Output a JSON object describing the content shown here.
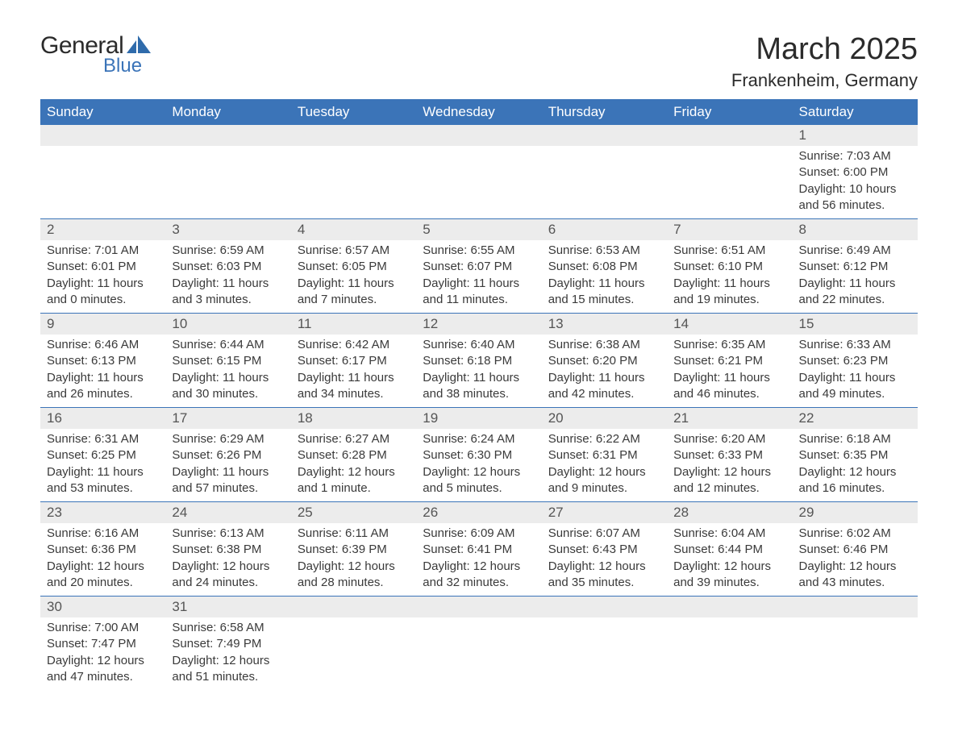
{
  "logo": {
    "top": "General",
    "bottom": "Blue",
    "sail_color": "#2f6bab",
    "text_color": "#2b2b2b"
  },
  "title": "March 2025",
  "location": "Frankenheim, Germany",
  "colors": {
    "header_bg": "#3b74b8",
    "header_text": "#ffffff",
    "daynum_bg": "#ececec",
    "row_divider": "#3b74b8",
    "body_text": "#3a3a3a"
  },
  "typography": {
    "title_fontsize": 38,
    "location_fontsize": 22,
    "header_fontsize": 17,
    "daynum_fontsize": 17,
    "cell_fontsize": 15
  },
  "layout": {
    "columns": 7,
    "rows": 6,
    "start_day_index": 6
  },
  "weekdays": [
    "Sunday",
    "Monday",
    "Tuesday",
    "Wednesday",
    "Thursday",
    "Friday",
    "Saturday"
  ],
  "days": [
    {
      "n": 1,
      "sunrise": "7:03 AM",
      "sunset": "6:00 PM",
      "daylight": "10 hours and 56 minutes."
    },
    {
      "n": 2,
      "sunrise": "7:01 AM",
      "sunset": "6:01 PM",
      "daylight": "11 hours and 0 minutes."
    },
    {
      "n": 3,
      "sunrise": "6:59 AM",
      "sunset": "6:03 PM",
      "daylight": "11 hours and 3 minutes."
    },
    {
      "n": 4,
      "sunrise": "6:57 AM",
      "sunset": "6:05 PM",
      "daylight": "11 hours and 7 minutes."
    },
    {
      "n": 5,
      "sunrise": "6:55 AM",
      "sunset": "6:07 PM",
      "daylight": "11 hours and 11 minutes."
    },
    {
      "n": 6,
      "sunrise": "6:53 AM",
      "sunset": "6:08 PM",
      "daylight": "11 hours and 15 minutes."
    },
    {
      "n": 7,
      "sunrise": "6:51 AM",
      "sunset": "6:10 PM",
      "daylight": "11 hours and 19 minutes."
    },
    {
      "n": 8,
      "sunrise": "6:49 AM",
      "sunset": "6:12 PM",
      "daylight": "11 hours and 22 minutes."
    },
    {
      "n": 9,
      "sunrise": "6:46 AM",
      "sunset": "6:13 PM",
      "daylight": "11 hours and 26 minutes."
    },
    {
      "n": 10,
      "sunrise": "6:44 AM",
      "sunset": "6:15 PM",
      "daylight": "11 hours and 30 minutes."
    },
    {
      "n": 11,
      "sunrise": "6:42 AM",
      "sunset": "6:17 PM",
      "daylight": "11 hours and 34 minutes."
    },
    {
      "n": 12,
      "sunrise": "6:40 AM",
      "sunset": "6:18 PM",
      "daylight": "11 hours and 38 minutes."
    },
    {
      "n": 13,
      "sunrise": "6:38 AM",
      "sunset": "6:20 PM",
      "daylight": "11 hours and 42 minutes."
    },
    {
      "n": 14,
      "sunrise": "6:35 AM",
      "sunset": "6:21 PM",
      "daylight": "11 hours and 46 minutes."
    },
    {
      "n": 15,
      "sunrise": "6:33 AM",
      "sunset": "6:23 PM",
      "daylight": "11 hours and 49 minutes."
    },
    {
      "n": 16,
      "sunrise": "6:31 AM",
      "sunset": "6:25 PM",
      "daylight": "11 hours and 53 minutes."
    },
    {
      "n": 17,
      "sunrise": "6:29 AM",
      "sunset": "6:26 PM",
      "daylight": "11 hours and 57 minutes."
    },
    {
      "n": 18,
      "sunrise": "6:27 AM",
      "sunset": "6:28 PM",
      "daylight": "12 hours and 1 minute."
    },
    {
      "n": 19,
      "sunrise": "6:24 AM",
      "sunset": "6:30 PM",
      "daylight": "12 hours and 5 minutes."
    },
    {
      "n": 20,
      "sunrise": "6:22 AM",
      "sunset": "6:31 PM",
      "daylight": "12 hours and 9 minutes."
    },
    {
      "n": 21,
      "sunrise": "6:20 AM",
      "sunset": "6:33 PM",
      "daylight": "12 hours and 12 minutes."
    },
    {
      "n": 22,
      "sunrise": "6:18 AM",
      "sunset": "6:35 PM",
      "daylight": "12 hours and 16 minutes."
    },
    {
      "n": 23,
      "sunrise": "6:16 AM",
      "sunset": "6:36 PM",
      "daylight": "12 hours and 20 minutes."
    },
    {
      "n": 24,
      "sunrise": "6:13 AM",
      "sunset": "6:38 PM",
      "daylight": "12 hours and 24 minutes."
    },
    {
      "n": 25,
      "sunrise": "6:11 AM",
      "sunset": "6:39 PM",
      "daylight": "12 hours and 28 minutes."
    },
    {
      "n": 26,
      "sunrise": "6:09 AM",
      "sunset": "6:41 PM",
      "daylight": "12 hours and 32 minutes."
    },
    {
      "n": 27,
      "sunrise": "6:07 AM",
      "sunset": "6:43 PM",
      "daylight": "12 hours and 35 minutes."
    },
    {
      "n": 28,
      "sunrise": "6:04 AM",
      "sunset": "6:44 PM",
      "daylight": "12 hours and 39 minutes."
    },
    {
      "n": 29,
      "sunrise": "6:02 AM",
      "sunset": "6:46 PM",
      "daylight": "12 hours and 43 minutes."
    },
    {
      "n": 30,
      "sunrise": "7:00 AM",
      "sunset": "7:47 PM",
      "daylight": "12 hours and 47 minutes."
    },
    {
      "n": 31,
      "sunrise": "6:58 AM",
      "sunset": "7:49 PM",
      "daylight": "12 hours and 51 minutes."
    }
  ],
  "labels": {
    "sunrise": "Sunrise:",
    "sunset": "Sunset:",
    "daylight": "Daylight:"
  }
}
